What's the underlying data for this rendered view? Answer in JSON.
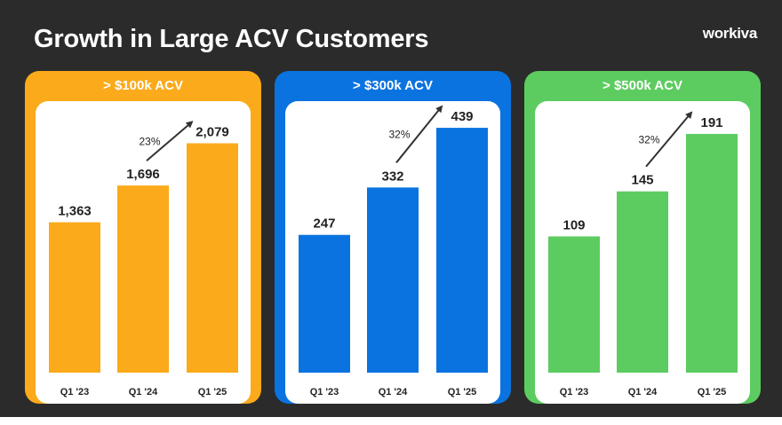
{
  "header": {
    "title": "Growth in Large ACV Customers",
    "logo": "workiva"
  },
  "colors": {
    "background": "#2b2b2b",
    "orange": "#fbaa1b",
    "blue": "#0a73e0",
    "green": "#5dcc60",
    "label_text": "#222222",
    "arrow": "#333333"
  },
  "chart_data": [
    {
      "type": "bar",
      "title": "> $100k ACV",
      "categories": [
        "Q1 '23",
        "Q1 '24",
        "Q1 '25"
      ],
      "values": [
        1363,
        1696,
        2079
      ],
      "value_labels": [
        "1,363",
        "1,696",
        "2,079"
      ],
      "growth_annotation": "23%",
      "color": "#fbaa1b",
      "ylim": [
        0,
        2300
      ]
    },
    {
      "type": "bar",
      "title": "> $300k ACV",
      "categories": [
        "Q1 '23",
        "Q1 '24",
        "Q1 '25"
      ],
      "values": [
        247,
        332,
        439
      ],
      "value_labels": [
        "247",
        "332",
        "439"
      ],
      "growth_annotation": "32%",
      "color": "#0a73e0",
      "ylim": [
        0,
        455
      ]
    },
    {
      "type": "bar",
      "title": "> $500k ACV",
      "categories": [
        "Q1 '23",
        "Q1 '24",
        "Q1 '25"
      ],
      "values": [
        109,
        145,
        191
      ],
      "value_labels": [
        "109",
        "145",
        "191"
      ],
      "growth_annotation": "32%",
      "color": "#5dcc60",
      "ylim": [
        0,
        203
      ]
    }
  ]
}
